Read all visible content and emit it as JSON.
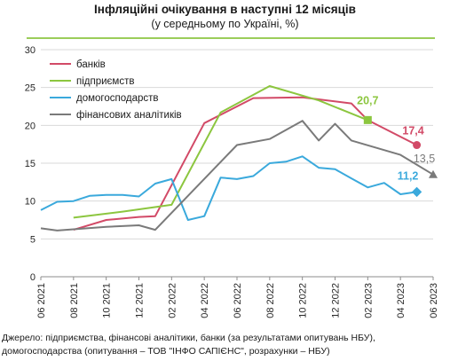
{
  "header": {
    "title": "Інфляційні очікування в наступні  12 місяців",
    "subtitle": "(у середньому по Україні, %)"
  },
  "chart_data": {
    "type": "line",
    "title": "Інфляційні очікування в наступні  12 місяців",
    "subtitle": "(у середньому по Україні, %)",
    "ylim": [
      0,
      30
    ],
    "yticks": [
      "0",
      "5",
      "10",
      "15",
      "20",
      "25",
      "30"
    ],
    "xlim": [
      "2021-06",
      "2023-06"
    ],
    "x_tick_labels": [
      "06 2021",
      "08 2021",
      "10 2021",
      "12 2021",
      "02 2022",
      "04 2022",
      "06 2022",
      "08 2022",
      "10 2022",
      "12 2022",
      "02 2023",
      "04 2023",
      "06 2023"
    ],
    "grid": "horizontal",
    "legend": "top-left",
    "series": [
      {
        "name": "банків",
        "color": "#d24a67",
        "x": [
          "2021-08",
          "2021-10",
          "2021-12",
          "2022-01",
          "2022-04",
          "2022-07",
          "2022-10",
          "2023-01",
          "2023-02",
          "2023-05"
        ],
        "values": [
          6.2,
          7.5,
          7.9,
          8.0,
          20.3,
          23.6,
          23.7,
          22.9,
          20.7,
          17.4
        ],
        "last_label": "17,4"
      },
      {
        "name": "підприємств",
        "color": "#8cc63f",
        "x": [
          "2021-08",
          "2021-11",
          "2022-02",
          "2022-05",
          "2022-08",
          "2022-11",
          "2023-02"
        ],
        "values": [
          7.8,
          8.6,
          9.5,
          21.7,
          25.2,
          23.3,
          20.7
        ],
        "last_label": "20,7"
      },
      {
        "name": "домогосподарств",
        "color": "#3aa9dc",
        "x": [
          "2021-06",
          "2021-07",
          "2021-08",
          "2021-09",
          "2021-10",
          "2021-11",
          "2021-12",
          "2022-01",
          "2022-02",
          "2022-03",
          "2022-04",
          "2022-05",
          "2022-06",
          "2022-07",
          "2022-08",
          "2022-09",
          "2022-10",
          "2022-11",
          "2022-12",
          "2023-01",
          "2023-02",
          "2023-03",
          "2023-04",
          "2023-05"
        ],
        "values": [
          8.8,
          9.9,
          10.0,
          10.7,
          10.8,
          10.8,
          10.6,
          12.3,
          12.9,
          7.5,
          8.0,
          13.1,
          12.9,
          13.3,
          15.0,
          15.2,
          15.9,
          14.4,
          14.2,
          13.0,
          11.8,
          12.4,
          10.9,
          11.2
        ],
        "last_label": "11,2"
      },
      {
        "name": "фінансових  аналітиків",
        "color": "#7a7a7a",
        "x": [
          "2021-06",
          "2021-07",
          "2021-10",
          "2021-12",
          "2022-01",
          "2022-06",
          "2022-08",
          "2022-10",
          "2022-11",
          "2022-12",
          "2023-01",
          "2023-04",
          "2023-06"
        ],
        "values": [
          6.4,
          6.1,
          6.6,
          6.8,
          6.2,
          17.4,
          18.2,
          20.6,
          18.0,
          20.2,
          18.0,
          16.1,
          13.5
        ],
        "last_label": "13,5"
      }
    ]
  },
  "source": {
    "line1": "Джерело: підприємства, фінансові аналітики, банки (за результатами опитувань НБУ),",
    "line2": "домогосподарства (опитування – ТОВ \"ІНФО САПІЄНС\", розрахунки – НБУ)"
  }
}
